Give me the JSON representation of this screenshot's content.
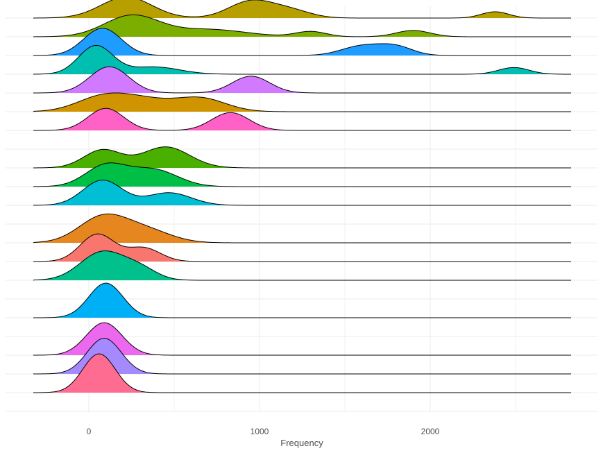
{
  "chart_data": {
    "type": "ridgeline",
    "xlabel": "Frequency",
    "ylabel": "",
    "title": "",
    "xlim": [
      -330,
      2830
    ],
    "x_ticks": [
      0,
      1000,
      2000
    ],
    "x_tick_labels": [
      "0",
      "1000",
      "2000"
    ],
    "grid": true,
    "legend": "none",
    "ridges": [
      {
        "color": "#B79F00",
        "peaks": [
          [
            220,
            150,
            1.0
          ],
          [
            950,
            130,
            0.8
          ],
          [
            1180,
            120,
            0.35
          ],
          [
            2380,
            80,
            0.3
          ]
        ]
      },
      {
        "color": "#7CAE00",
        "peaks": [
          [
            250,
            160,
            1.0
          ],
          [
            700,
            220,
            0.35
          ],
          [
            1300,
            90,
            0.25
          ],
          [
            1900,
            100,
            0.3
          ]
        ]
      },
      {
        "color": "#1E9CFF",
        "peaks": [
          [
            80,
            110,
            1.3
          ],
          [
            1600,
            120,
            0.45
          ],
          [
            1800,
            100,
            0.4
          ]
        ]
      },
      {
        "color": "#00BFB0",
        "peaks": [
          [
            40,
            100,
            1.35
          ],
          [
            380,
            150,
            0.35
          ],
          [
            2490,
            90,
            0.32
          ]
        ]
      },
      {
        "color": "#D27AFF",
        "peaks": [
          [
            120,
            115,
            1.25
          ],
          [
            950,
            110,
            0.8
          ]
        ]
      },
      {
        "color": "#CF9400",
        "peaks": [
          [
            80,
            150,
            0.7
          ],
          [
            320,
            150,
            0.5
          ],
          [
            650,
            150,
            0.65
          ]
        ]
      },
      {
        "color": "#FF61C7",
        "peaks": [
          [
            100,
            105,
            1.05
          ],
          [
            830,
            110,
            0.85
          ]
        ]
      },
      {
        "color": "#49B000",
        "peaks": [
          [
            80,
            110,
            0.85
          ],
          [
            450,
            140,
            1.0
          ]
        ]
      },
      {
        "color": "#00BF46",
        "peaks": [
          [
            100,
            120,
            1.0
          ],
          [
            380,
            140,
            0.8
          ]
        ]
      },
      {
        "color": "#00BED4",
        "peaks": [
          [
            80,
            115,
            1.2
          ],
          [
            470,
            130,
            0.6
          ]
        ]
      },
      {
        "color": "#E6861E",
        "peaks": [
          [
            80,
            140,
            1.2
          ],
          [
            330,
            150,
            0.6
          ]
        ]
      },
      {
        "color": "#F8766D",
        "peaks": [
          [
            50,
            100,
            1.3
          ],
          [
            320,
            100,
            0.65
          ]
        ]
      },
      {
        "color": "#00C08B",
        "peaks": [
          [
            80,
            130,
            1.35
          ],
          [
            300,
            100,
            0.5
          ]
        ]
      },
      {
        "color": "#00B0F6",
        "peaks": [
          [
            100,
            100,
            1.65
          ]
        ]
      },
      {
        "color": "#EC69EF",
        "peaks": [
          [
            90,
            105,
            1.55
          ]
        ]
      },
      {
        "color": "#A58AFF",
        "peaks": [
          [
            90,
            100,
            1.7
          ]
        ]
      },
      {
        "color": "#FF6C91",
        "peaks": [
          [
            60,
            95,
            1.85
          ]
        ]
      }
    ]
  }
}
